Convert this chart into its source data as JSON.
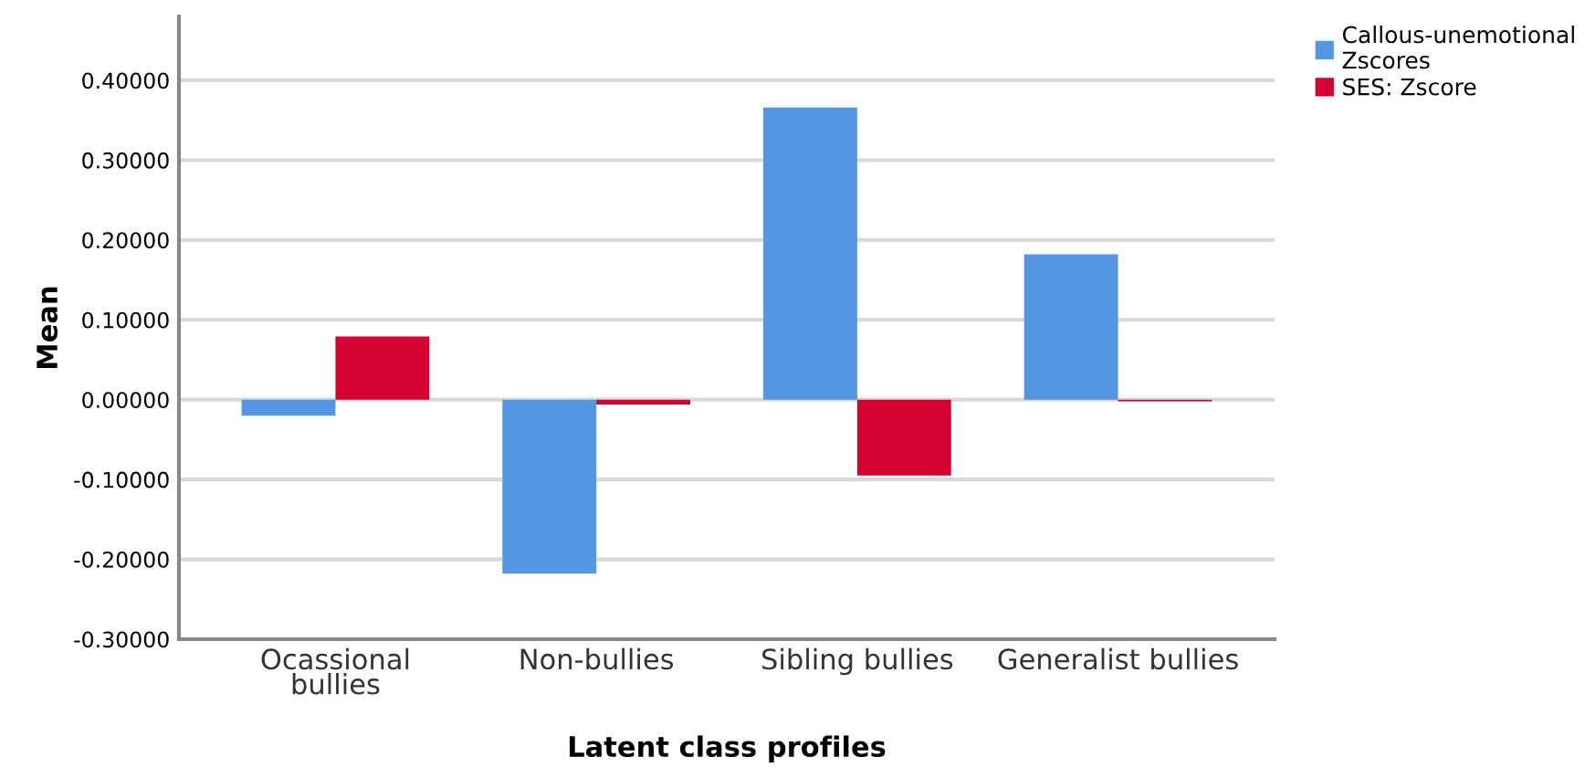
{
  "chart_data": {
    "type": "bar",
    "xlabel": "Latent class profiles",
    "ylabel": "Mean",
    "categories": [
      "Ocassional\nbullies",
      "Non-bullies",
      "Sibling bullies",
      "Generalist bullies"
    ],
    "series": [
      {
        "name": "Callous-unemotional\nZscores",
        "color": "#5596e3",
        "values": [
          -0.02,
          -0.218,
          0.366,
          0.182
        ]
      },
      {
        "name": "SES: Zscore",
        "color": "#d50032",
        "values": [
          0.079,
          -0.006,
          -0.095,
          -0.002
        ]
      }
    ],
    "ylim": [
      -0.3,
      0.48
    ],
    "yticks": [
      {
        "value": -0.3,
        "label": "-0.30000"
      },
      {
        "value": -0.2,
        "label": "-0.20000"
      },
      {
        "value": -0.1,
        "label": "-0.10000"
      },
      {
        "value": 0,
        "label": "0.00000"
      },
      {
        "value": 0.1,
        "label": "0.10000"
      },
      {
        "value": 0.2,
        "label": "0.20000"
      },
      {
        "value": 0.3,
        "label": "0.30000"
      },
      {
        "value": 0.4,
        "label": "0.40000"
      }
    ],
    "grid": "y",
    "legend": "top right"
  }
}
